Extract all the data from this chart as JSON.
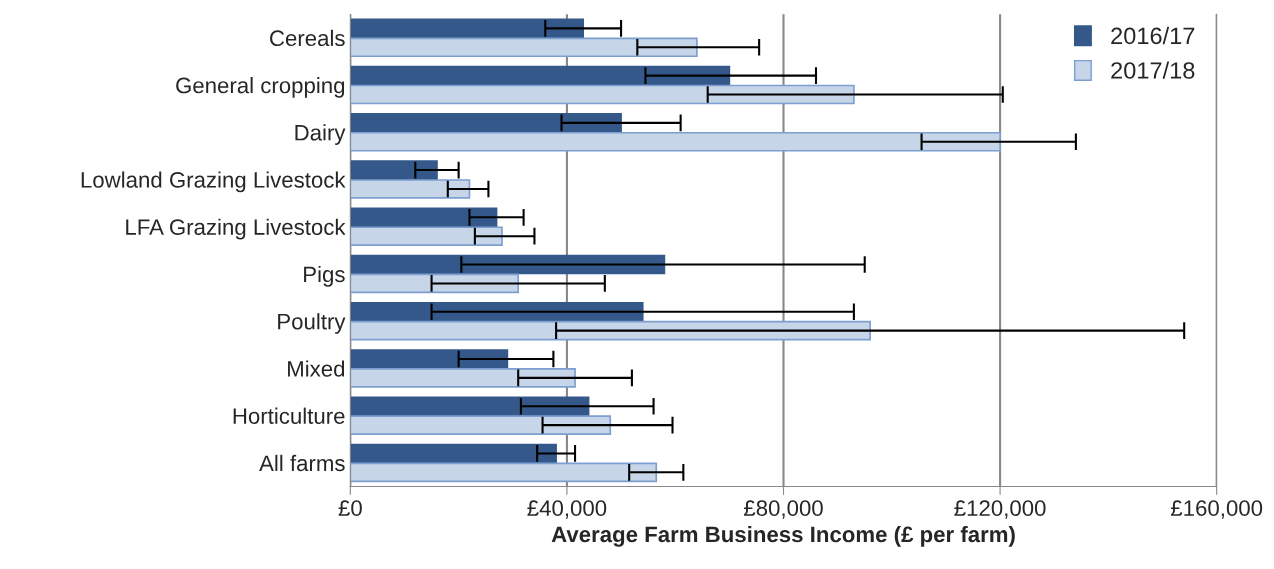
{
  "chart_data": {
    "type": "bar",
    "orientation": "horizontal",
    "xlabel": "Average Farm Business Income (£ per farm)",
    "categories": [
      "Cereals",
      "General cropping",
      "Dairy",
      "Lowland Grazing Livestock",
      "LFA Grazing Livestock",
      "Pigs",
      "Poultry",
      "Mixed",
      "Horticulture",
      "All farms"
    ],
    "series": [
      {
        "name": "2016/17",
        "color": "#34588a",
        "values": [
          43000,
          70000,
          50000,
          16000,
          27000,
          58000,
          54000,
          29000,
          44000,
          38000
        ],
        "errors": [
          [
            36000,
            50000
          ],
          [
            54500,
            86000
          ],
          [
            39000,
            61000
          ],
          [
            12000,
            20000
          ],
          [
            22000,
            32000
          ],
          [
            20500,
            95000
          ],
          [
            15000,
            93000
          ],
          [
            20000,
            37500
          ],
          [
            31500,
            56000
          ],
          [
            34500,
            41500
          ]
        ]
      },
      {
        "name": "2017/18",
        "color": "#c6d5e8",
        "values": [
          64000,
          93000,
          120000,
          22000,
          28000,
          31000,
          96000,
          41500,
          48000,
          56500
        ],
        "errors": [
          [
            53000,
            75500
          ],
          [
            66000,
            120500
          ],
          [
            105500,
            134000
          ],
          [
            18000,
            25500
          ],
          [
            23000,
            34000
          ],
          [
            15000,
            47000
          ],
          [
            38000,
            154000
          ],
          [
            31000,
            52000
          ],
          [
            35500,
            59500
          ],
          [
            51500,
            61500
          ]
        ]
      }
    ],
    "xlim": [
      0,
      160000
    ],
    "xticks": [
      {
        "value": 0,
        "label": "£0"
      },
      {
        "value": 40000,
        "label": "£40,000"
      },
      {
        "value": 80000,
        "label": "£80,000"
      },
      {
        "value": 120000,
        "label": "£120,000"
      },
      {
        "value": 160000,
        "label": "£160,000"
      }
    ],
    "grid": "x",
    "legend": "top right"
  }
}
